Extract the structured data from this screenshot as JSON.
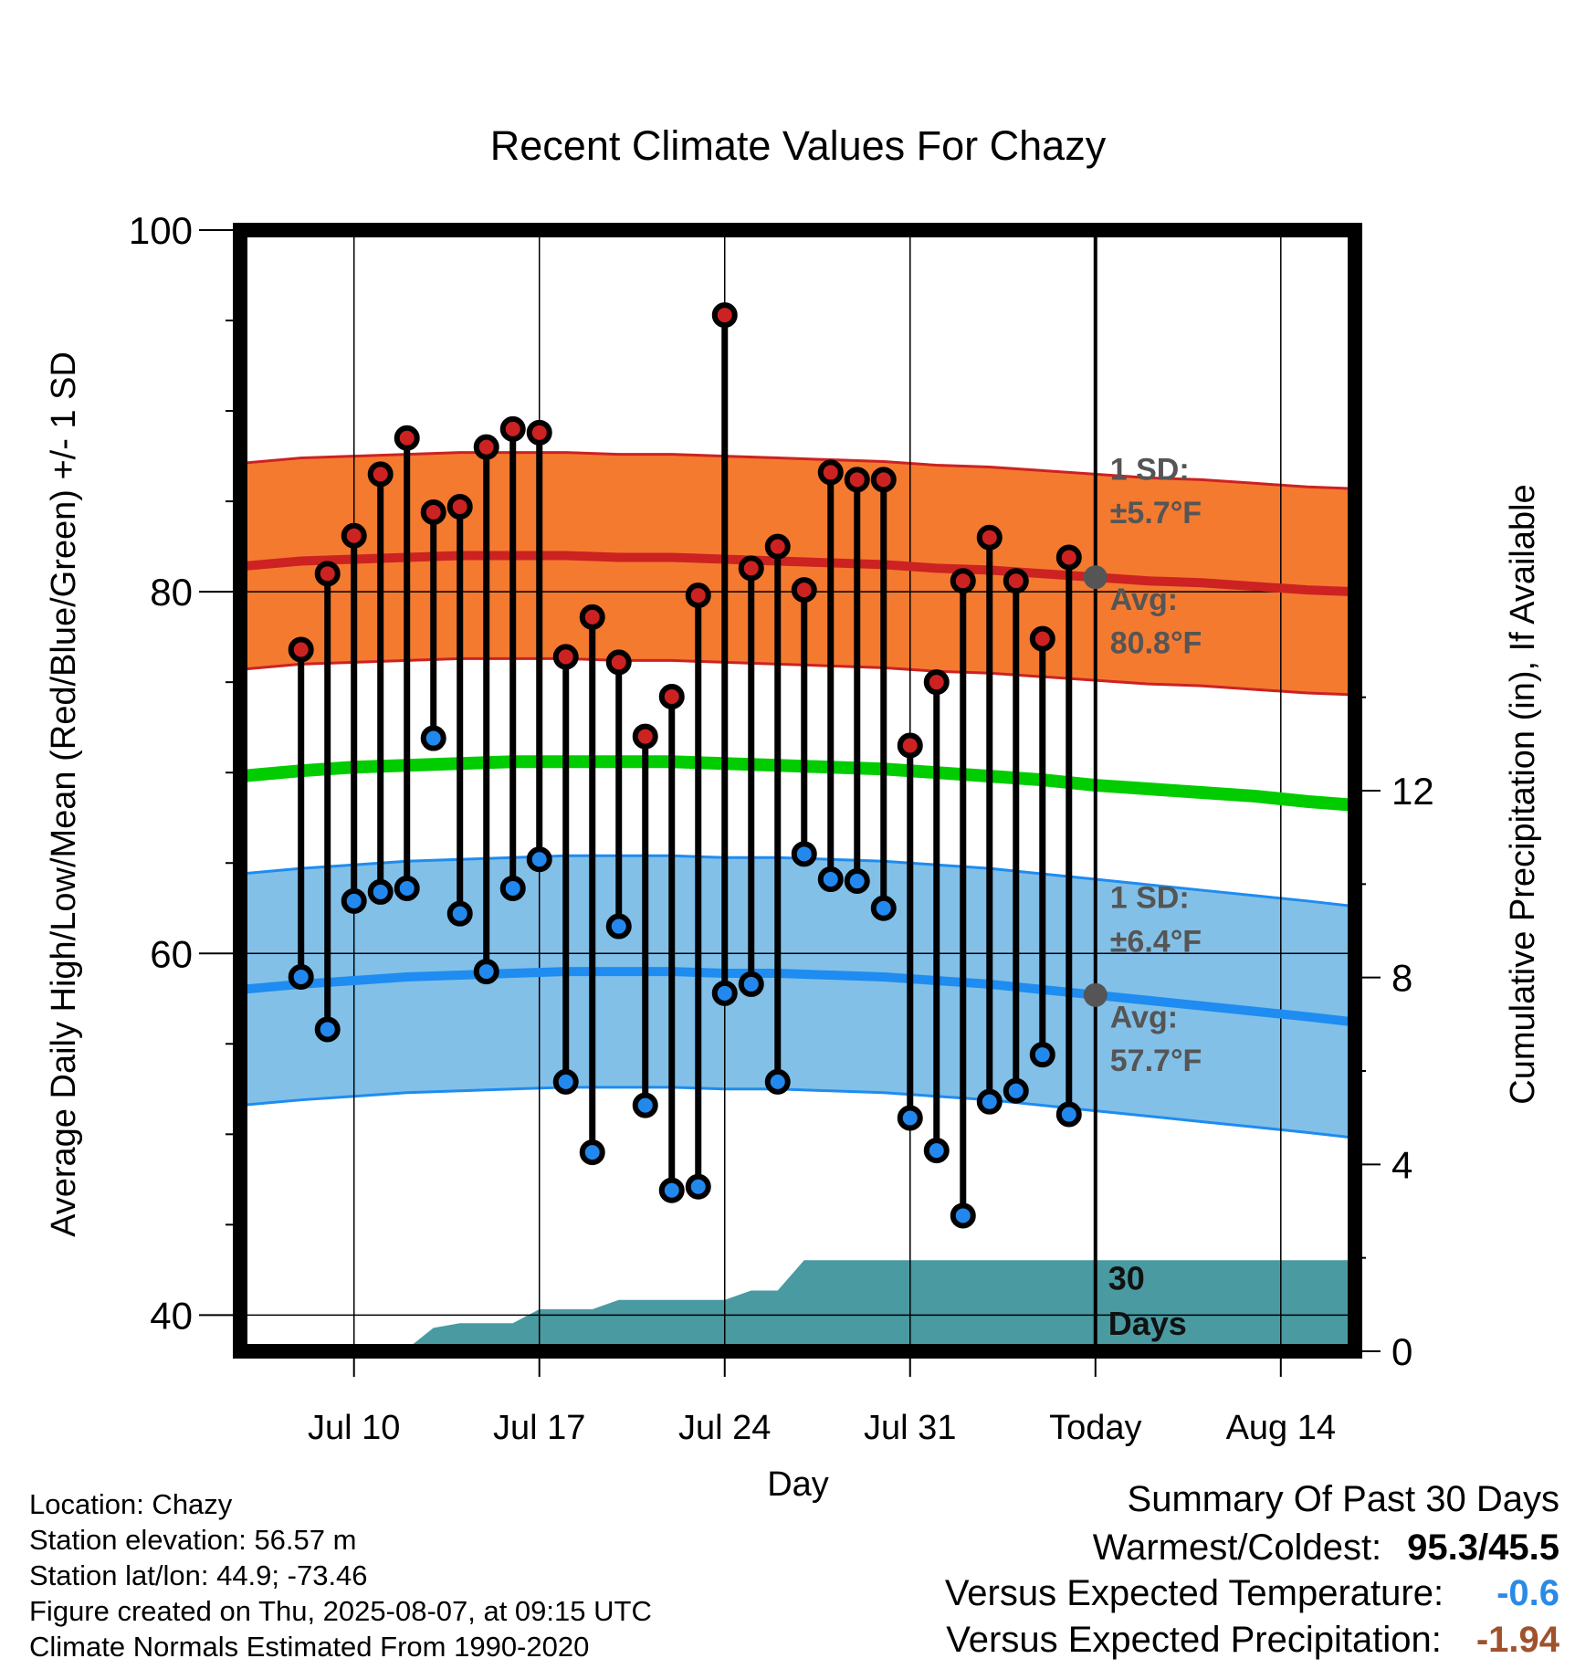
{
  "chart_data": {
    "type": "line",
    "title": "Recent Climate Values For Chazy",
    "xlabel": "Day",
    "ylabel": "Average Daily High/Low/Mean (Red/Blue/Green) +/- 1 SD",
    "y2label": "Cumulative Precipitation (in), If Available",
    "ylim": [
      38,
      100
    ],
    "y2lim": [
      0,
      24
    ],
    "yticks": [
      "40",
      "60",
      "80",
      "100"
    ],
    "y2ticks": [
      "0",
      "4",
      "8",
      "12"
    ],
    "xlim": [
      5.7,
      47.8
    ],
    "xticks": [
      {
        "day": 10,
        "label": "Jul 10"
      },
      {
        "day": 17,
        "label": "Jul 17"
      },
      {
        "day": 24,
        "label": "Jul 24"
      },
      {
        "day": 31,
        "label": "Jul 31"
      },
      {
        "day": 38,
        "label": "Today"
      },
      {
        "day": 45,
        "label": "Aug 14"
      }
    ],
    "days": [
      8,
      9,
      10,
      11,
      12,
      13,
      14,
      15,
      16,
      17,
      18,
      19,
      20,
      21,
      22,
      23,
      24,
      25,
      26,
      27,
      28,
      29,
      30,
      31,
      32,
      33,
      34,
      35,
      36,
      37
    ],
    "series": [
      {
        "name": "High",
        "color": "#cc2222",
        "values": [
          76.8,
          81.0,
          83.1,
          86.5,
          88.5,
          84.4,
          84.7,
          88.0,
          89.0,
          88.8,
          76.4,
          78.6,
          76.1,
          72.0,
          74.2,
          79.8,
          95.3,
          81.3,
          82.5,
          80.1,
          86.6,
          86.2,
          86.2,
          71.5,
          75.0,
          80.6,
          83.0,
          80.6,
          77.4,
          81.9
        ]
      },
      {
        "name": "Low",
        "color": "#2288ee",
        "values": [
          58.7,
          55.8,
          62.9,
          63.4,
          63.6,
          71.9,
          62.2,
          59.0,
          63.6,
          65.2,
          52.9,
          49.0,
          61.5,
          51.6,
          46.9,
          47.1,
          57.8,
          58.3,
          52.9,
          65.5,
          64.1,
          64.0,
          62.5,
          50.9,
          49.1,
          45.5,
          51.8,
          52.4,
          54.4,
          51.1
        ]
      }
    ],
    "normals": {
      "days": [
        5.7,
        8,
        10,
        12,
        14,
        16,
        18,
        20,
        22,
        24,
        26,
        28,
        30,
        32,
        34,
        36,
        38,
        40,
        42,
        44,
        46,
        47.8
      ],
      "high_avg": [
        81.4,
        81.7,
        81.8,
        81.9,
        82.0,
        82.0,
        82.0,
        81.9,
        81.9,
        81.8,
        81.7,
        81.6,
        81.5,
        81.3,
        81.2,
        81.0,
        80.8,
        80.6,
        80.5,
        80.3,
        80.1,
        80.0
      ],
      "low_avg": [
        58.0,
        58.3,
        58.5,
        58.7,
        58.8,
        58.9,
        59.0,
        59.0,
        59.0,
        58.9,
        58.9,
        58.8,
        58.7,
        58.5,
        58.3,
        58.0,
        57.7,
        57.4,
        57.1,
        56.8,
        56.5,
        56.2
      ],
      "mean_avg": [
        69.8,
        70.1,
        70.3,
        70.4,
        70.5,
        70.6,
        70.6,
        70.6,
        70.6,
        70.5,
        70.4,
        70.3,
        70.2,
        70.0,
        69.8,
        69.6,
        69.3,
        69.1,
        68.9,
        68.7,
        68.4,
        68.2
      ],
      "high_sd": 5.7,
      "low_sd": 6.4
    },
    "precip_cumulative": {
      "days": [
        5.7,
        10,
        12,
        13,
        14,
        15,
        16,
        17,
        18,
        19,
        20,
        21,
        22,
        23,
        24,
        25,
        26,
        27,
        28,
        38
      ],
      "values": [
        0.0,
        0.05,
        0.05,
        0.5,
        0.6,
        0.6,
        0.6,
        0.9,
        0.9,
        0.9,
        1.1,
        1.1,
        1.1,
        1.1,
        1.1,
        1.3,
        1.3,
        1.95,
        1.95,
        1.95
      ]
    },
    "annotations": {
      "high_sd_label": "1 SD:",
      "high_sd_value": "±5.7°F",
      "high_avg_label": "Avg:",
      "high_avg_value": "80.8°F",
      "low_sd_label": "1 SD:",
      "low_sd_value": "±6.4°F",
      "low_avg_label": "Avg:",
      "low_avg_value": "57.7°F",
      "window_label_1": "30",
      "window_label_2": "Days"
    }
  },
  "info": {
    "location": "Location: Chazy",
    "elevation": "Station elevation: 56.57 m",
    "latlon": "Station lat/lon: 44.9; -73.46",
    "created": "Figure created on Thu, 2025-08-07, at 09:15 UTC",
    "normals": "Climate Normals Estimated From 1990-2020"
  },
  "summary": {
    "title": "Summary Of Past 30 Days",
    "warm_cold_label": "Warmest/Coldest:",
    "warm_cold_value": "95.3/45.5",
    "temp_label": "Versus Expected Temperature:",
    "temp_value": "-0.6",
    "temp_color": "#2a8ae6",
    "precip_label": "Versus Expected Precipitation:",
    "precip_value": "-1.94",
    "precip_color": "#a0522d"
  },
  "colors": {
    "high_band": "#f47a30",
    "high_line": "#cc2222",
    "low_band": "#82c0e8",
    "low_line": "#1e8cf0",
    "mean_line": "#00cc00",
    "precip_fill": "#4a9aa2",
    "marker_today": "#555555"
  }
}
